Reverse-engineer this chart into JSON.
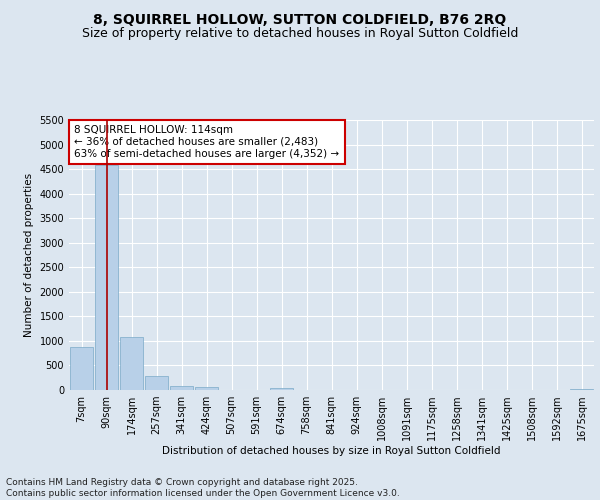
{
  "title": "8, SQUIRREL HOLLOW, SUTTON COLDFIELD, B76 2RQ",
  "subtitle": "Size of property relative to detached houses in Royal Sutton Coldfield",
  "xlabel": "Distribution of detached houses by size in Royal Sutton Coldfield",
  "ylabel": "Number of detached properties",
  "categories": [
    "7sqm",
    "90sqm",
    "174sqm",
    "257sqm",
    "341sqm",
    "424sqm",
    "507sqm",
    "591sqm",
    "674sqm",
    "758sqm",
    "841sqm",
    "924sqm",
    "1008sqm",
    "1091sqm",
    "1175sqm",
    "1258sqm",
    "1341sqm",
    "1425sqm",
    "1508sqm",
    "1592sqm",
    "1675sqm"
  ],
  "values": [
    880,
    4580,
    1070,
    290,
    75,
    55,
    0,
    0,
    45,
    0,
    0,
    0,
    0,
    0,
    0,
    0,
    0,
    0,
    0,
    0,
    30
  ],
  "bar_color": "#b8d0e8",
  "bar_edge_color": "#7aaac8",
  "vline_x": 1,
  "vline_color": "#aa0000",
  "annotation_text": "8 SQUIRREL HOLLOW: 114sqm\n← 36% of detached houses are smaller (2,483)\n63% of semi-detached houses are larger (4,352) →",
  "annotation_box_facecolor": "#ffffff",
  "annotation_box_edgecolor": "#cc0000",
  "ylim": [
    0,
    5500
  ],
  "yticks": [
    0,
    500,
    1000,
    1500,
    2000,
    2500,
    3000,
    3500,
    4000,
    4500,
    5000,
    5500
  ],
  "background_color": "#dce6f0",
  "plot_bg_color": "#dce6f0",
  "grid_color": "#ffffff",
  "footer": "Contains HM Land Registry data © Crown copyright and database right 2025.\nContains public sector information licensed under the Open Government Licence v3.0.",
  "title_fontsize": 10,
  "subtitle_fontsize": 9,
  "axis_label_fontsize": 7.5,
  "tick_fontsize": 7,
  "annotation_fontsize": 7.5,
  "footer_fontsize": 6.5
}
